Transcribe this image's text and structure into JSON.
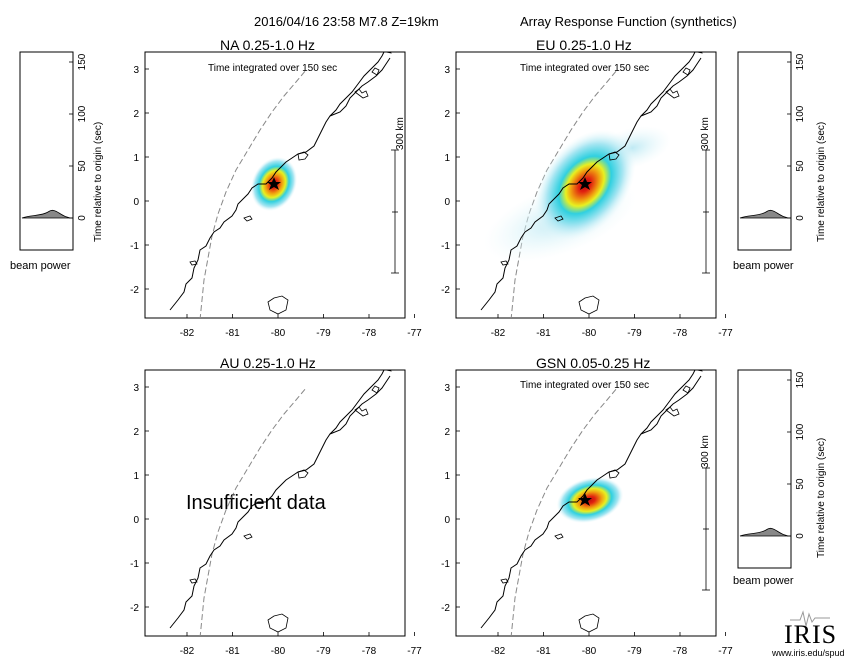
{
  "header": {
    "event_info": "2016/04/16 23:58  M7.8  Z=19km",
    "title": "Array Response Function (synthetics)"
  },
  "panels": [
    {
      "id": "NA",
      "title": "NA  0.25-1.0 Hz",
      "subtitle": "Time integrated over 150 sec",
      "note": "",
      "scale_label": "300 km",
      "has_scale": true,
      "has_blob": true,
      "blob_size": "small"
    },
    {
      "id": "EU",
      "title": "EU  0.25-1.0 Hz",
      "subtitle": "Time integrated over 150 sec",
      "note": "",
      "scale_label": "300 km",
      "has_scale": true,
      "has_blob": true,
      "blob_size": "large"
    },
    {
      "id": "AU",
      "title": "AU  0.25-1.0 Hz",
      "subtitle": "",
      "note": "Insufficient data",
      "scale_label": "",
      "has_scale": false,
      "has_blob": false,
      "blob_size": ""
    },
    {
      "id": "GSN",
      "title": "GSN  0.05-0.25 Hz",
      "subtitle": "Time integrated over 150 sec",
      "note": "",
      "scale_label": "300 km",
      "has_scale": true,
      "has_blob": true,
      "blob_size": "small"
    }
  ],
  "axes": {
    "x_ticks": [
      "-82",
      "-81",
      "-80",
      "-79",
      "-78",
      "-77"
    ],
    "y_ticks": [
      "3",
      "2",
      "1",
      "0",
      "-1",
      "-2"
    ]
  },
  "beam_plots": [
    {
      "id": "NA",
      "label": "beam power",
      "axis_label": "Time relative to origin (sec)",
      "ticks": [
        "150",
        "100",
        "50",
        "0"
      ]
    },
    {
      "id": "EU",
      "label": "beam power",
      "axis_label": "Time relative to origin (sec)",
      "ticks": [
        "150",
        "100",
        "50",
        "0"
      ]
    },
    {
      "id": "GSN",
      "label": "beam power",
      "axis_label": "Time relative to origin (sec)",
      "ticks": [
        "150",
        "100",
        "50",
        "0"
      ]
    }
  ],
  "logo": {
    "text": "IRIS",
    "url": "www.iris.edu/spud"
  },
  "colors": {
    "heat_core": "#e01010",
    "heat_mid": "#f0a010",
    "heat_yellow": "#f0f020",
    "heat_cyan": "#30d0e0",
    "heat_outer": "#c8eef6",
    "coast": "#000000",
    "trench": "#777777"
  }
}
